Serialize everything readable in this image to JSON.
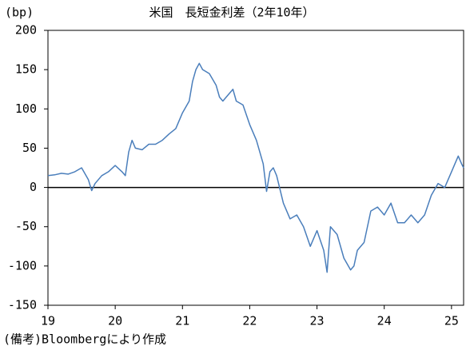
{
  "chart_data": {
    "type": "line",
    "title": "米国　長短金利差（2年10年）",
    "y_unit_label": "(bp)",
    "note": "(備考)Bloombergにより作成",
    "xlim": [
      19,
      25.18
    ],
    "xticks": [
      19,
      20,
      21,
      22,
      23,
      24,
      25
    ],
    "ylim": [
      -150,
      200
    ],
    "yticks": [
      -150,
      -100,
      -50,
      0,
      50,
      100,
      150,
      200
    ],
    "grid": false,
    "series": [
      {
        "color": "#4a7ebb",
        "x": [
          19.0,
          19.1,
          19.2,
          19.3,
          19.4,
          19.5,
          19.6,
          19.65,
          19.7,
          19.8,
          19.9,
          20.0,
          20.1,
          20.15,
          20.2,
          20.25,
          20.3,
          20.4,
          20.5,
          20.6,
          20.7,
          20.8,
          20.9,
          21.0,
          21.1,
          21.15,
          21.2,
          21.25,
          21.3,
          21.4,
          21.5,
          21.55,
          21.6,
          21.7,
          21.75,
          21.8,
          21.9,
          22.0,
          22.1,
          22.2,
          22.25,
          22.3,
          22.35,
          22.4,
          22.5,
          22.6,
          22.7,
          22.8,
          22.9,
          23.0,
          23.1,
          23.15,
          23.2,
          23.3,
          23.4,
          23.5,
          23.55,
          23.6,
          23.7,
          23.8,
          23.9,
          24.0,
          24.1,
          24.2,
          24.3,
          24.4,
          24.5,
          24.6,
          24.7,
          24.8,
          24.9,
          25.0,
          25.05,
          25.1,
          25.15,
          25.18
        ],
        "values": [
          15,
          16,
          18,
          17,
          20,
          25,
          10,
          -4,
          5,
          15,
          20,
          28,
          20,
          15,
          45,
          60,
          50,
          48,
          55,
          55,
          60,
          68,
          75,
          95,
          110,
          135,
          150,
          158,
          150,
          145,
          130,
          115,
          110,
          120,
          125,
          110,
          105,
          80,
          60,
          30,
          -5,
          20,
          25,
          15,
          -20,
          -40,
          -35,
          -50,
          -75,
          -55,
          -80,
          -108,
          -50,
          -60,
          -90,
          -105,
          -100,
          -80,
          -70,
          -30,
          -25,
          -35,
          -20,
          -45,
          -45,
          -35,
          -45,
          -35,
          -10,
          5,
          0,
          20,
          30,
          40,
          30,
          25
        ]
      }
    ]
  }
}
